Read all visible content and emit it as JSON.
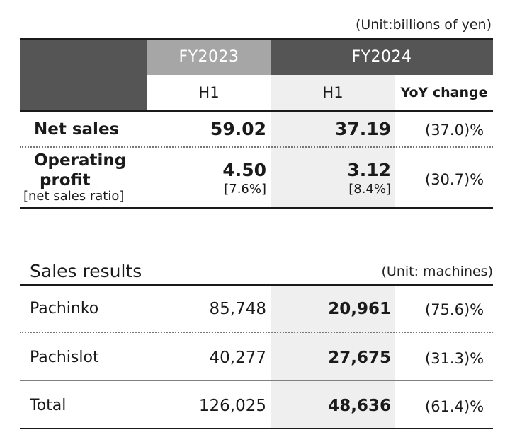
{
  "top": {
    "unit": "(Unit:billions of yen)",
    "header": {
      "fy2023": "FY2023",
      "fy2024": "FY2024",
      "h1_2023": "H1",
      "h1_2024": "H1",
      "yoy": "YoY change"
    },
    "rows": [
      {
        "label": "Net sales",
        "fy2023": "59.02",
        "fy2024": "37.19",
        "yoy": "(37.0)%"
      },
      {
        "label_line1": "Operating",
        "label_line2": "profit",
        "label_sub": "[net sales ratio]",
        "fy2023": "4.50",
        "fy2023_ratio": "[7.6%]",
        "fy2024": "3.12",
        "fy2024_ratio": "[8.4%]",
        "yoy": "(30.7)%"
      }
    ]
  },
  "sales": {
    "title": "Sales results",
    "unit": "(Unit: machines)",
    "rows": [
      {
        "label": "Pachinko",
        "fy2023": "85,748",
        "fy2024": "20,961",
        "yoy": "(75.6)%"
      },
      {
        "label": "Pachislot",
        "fy2023": "40,277",
        "fy2024": "27,675",
        "yoy": "(31.3)%"
      },
      {
        "label": "Total",
        "fy2023": "126,025",
        "fy2024": "48,636",
        "yoy": "(61.4)%"
      }
    ]
  },
  "colors": {
    "header_dark": "#555555",
    "header_mid": "#a6a6a6",
    "shade": "#efefef"
  }
}
